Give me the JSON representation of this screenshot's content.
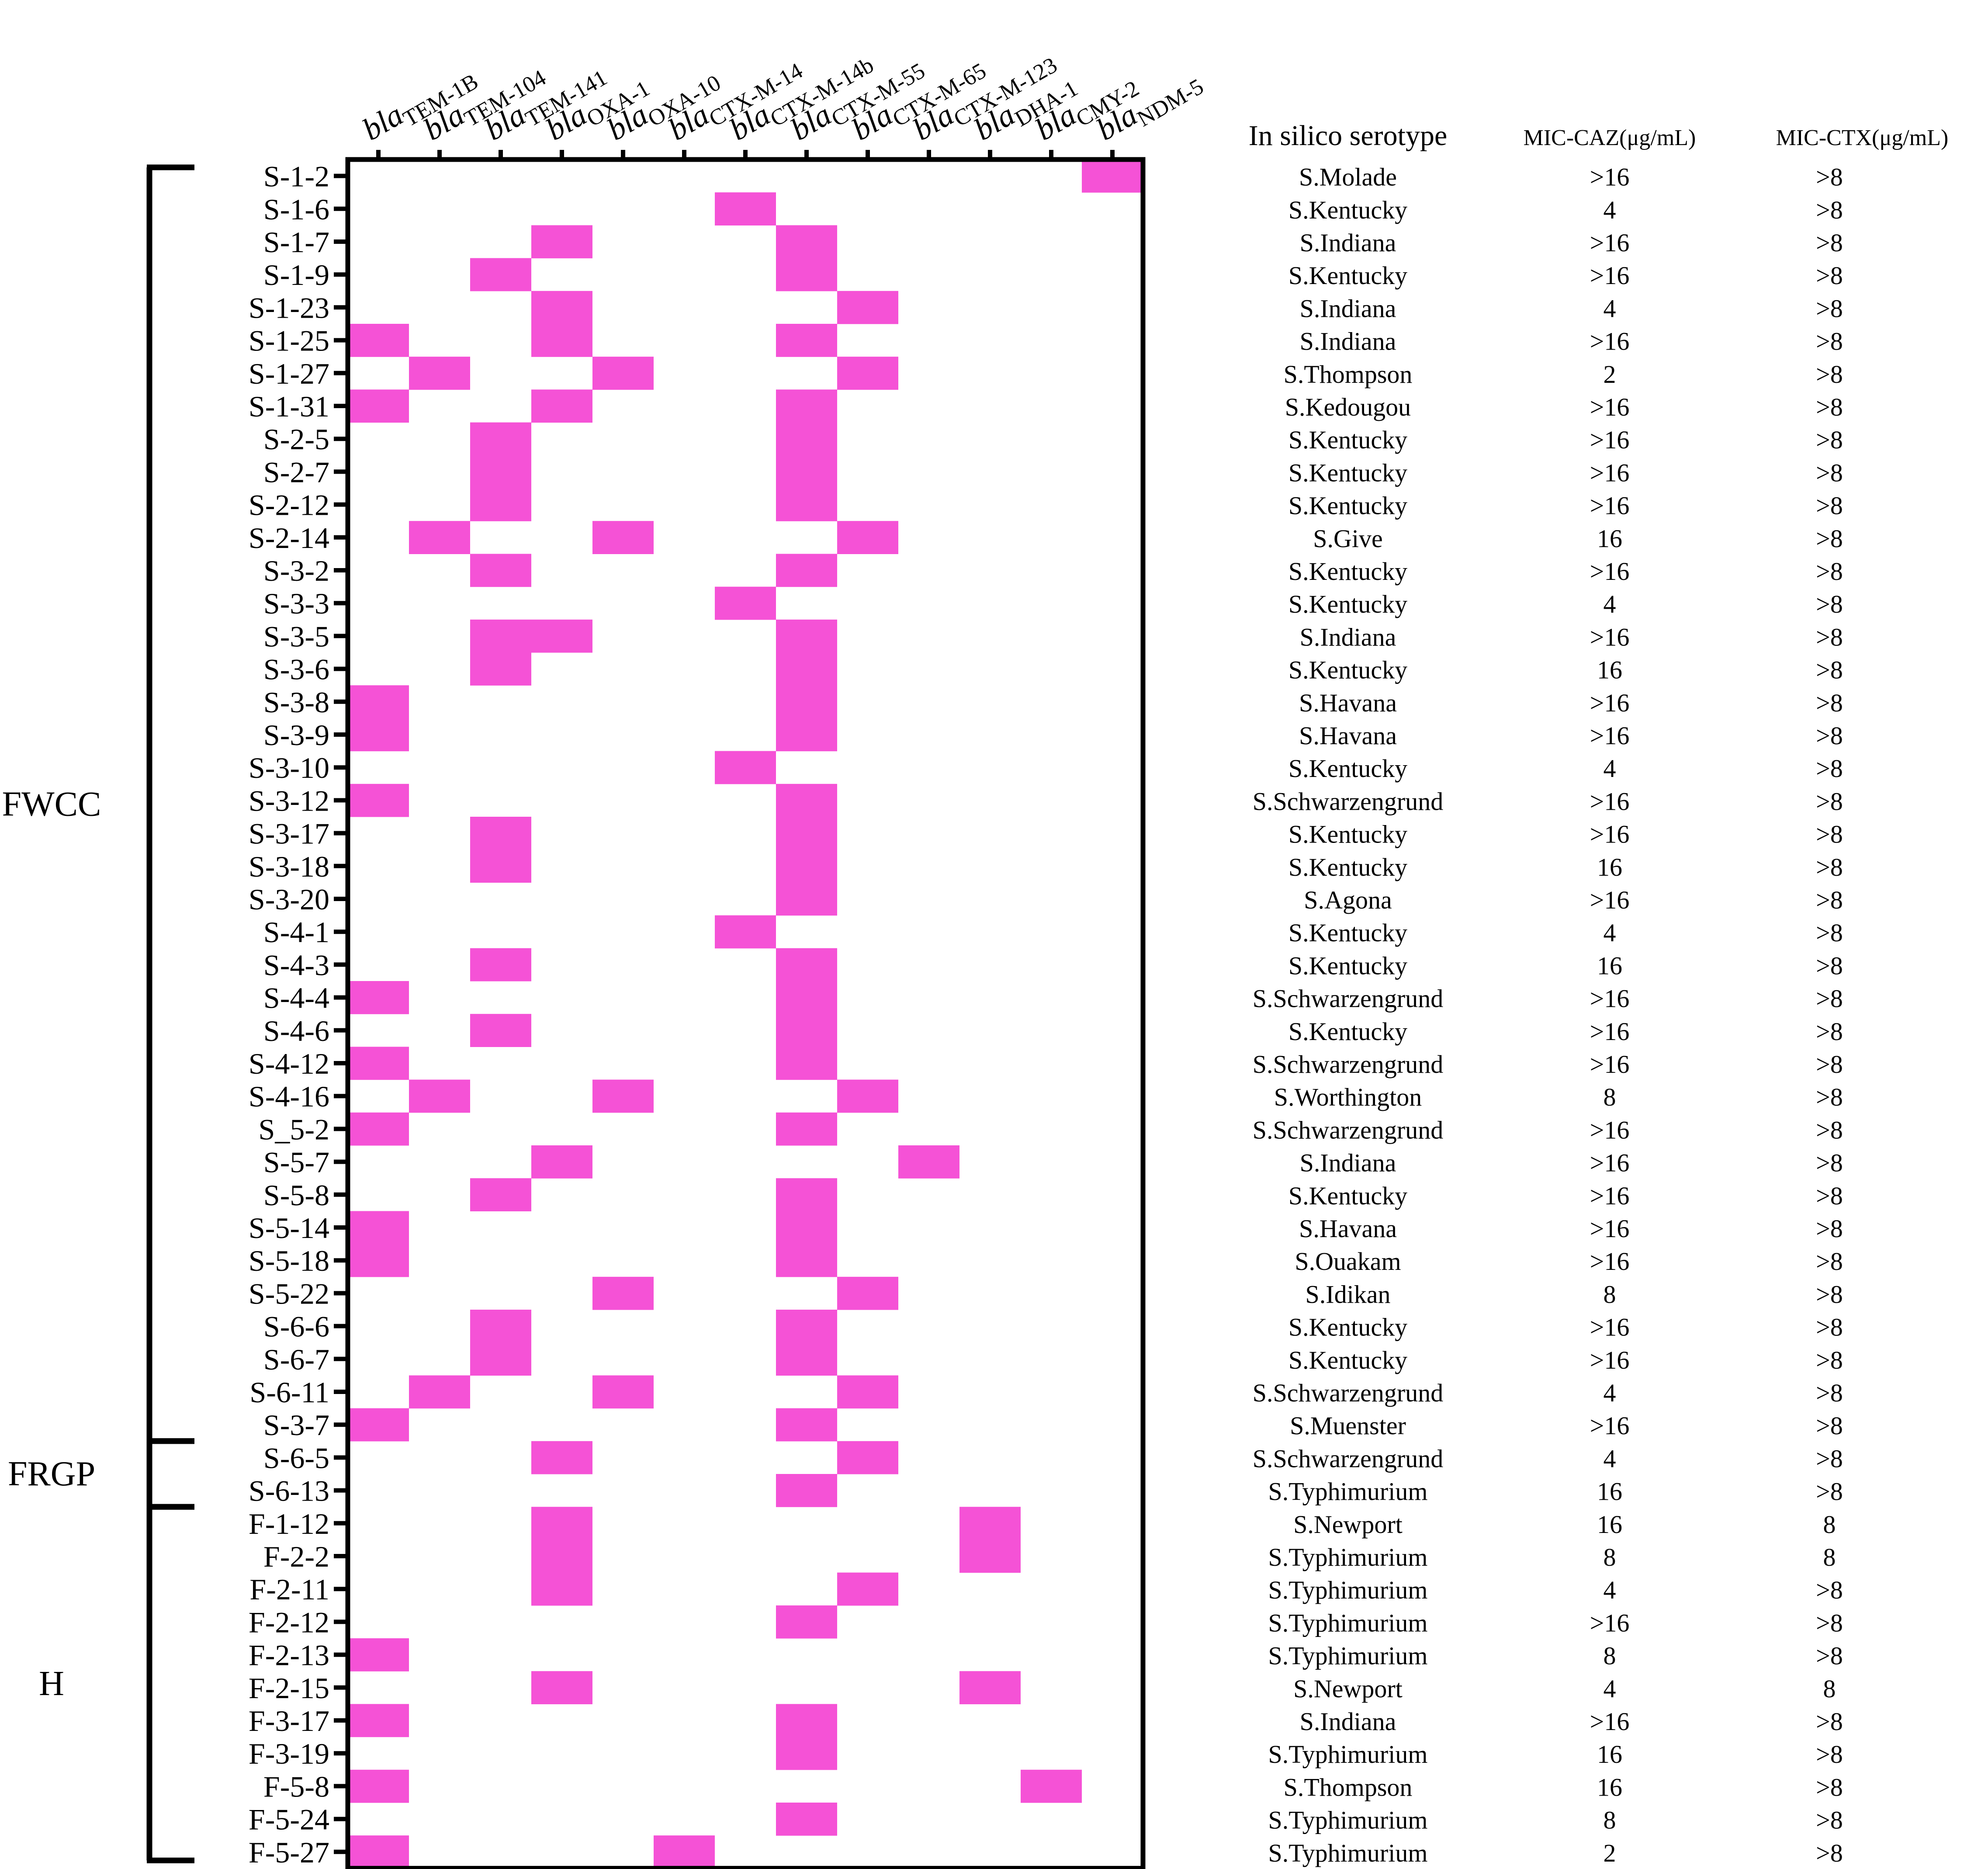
{
  "chart_data": {
    "type": "heatmap",
    "genes": [
      {
        "prefix": "bla",
        "sub": "TEM-1B"
      },
      {
        "prefix": "bla",
        "sub": "TEM-104"
      },
      {
        "prefix": "bla",
        "sub": "TEM-141"
      },
      {
        "prefix": "bla",
        "sub": "OXA-1"
      },
      {
        "prefix": "bla",
        "sub": "OXA-10"
      },
      {
        "prefix": "bla",
        "sub": "CTX-M-14"
      },
      {
        "prefix": "bla",
        "sub": "CTX-M-14b"
      },
      {
        "prefix": "bla",
        "sub": "CTX-M-55"
      },
      {
        "prefix": "bla",
        "sub": "CTX-M-65"
      },
      {
        "prefix": "bla",
        "sub": "CTX-M-123"
      },
      {
        "prefix": "bla",
        "sub": "DHA-1"
      },
      {
        "prefix": "bla",
        "sub": "CMY-2"
      },
      {
        "prefix": "bla",
        "sub": "NDM-5"
      }
    ],
    "table_headers": {
      "serotype": "In silico serotype",
      "mic_caz": "MIC-CAZ(μg/mL)",
      "mic_ctx": "MIC-CTX(μg/mL)"
    },
    "present_color": "#f552d6",
    "groups": [
      {
        "label": "FWCC",
        "first_row": 0,
        "last_row": 39
      },
      {
        "label": "FRGP",
        "first_row": 39,
        "last_row": 41
      },
      {
        "label": "H",
        "first_row": 41,
        "last_row": 52
      }
    ],
    "isolates": [
      {
        "id": "S-1-2",
        "serotype": "S.Molade",
        "caz": ">16",
        "ctx": ">8",
        "genes": [
          12
        ]
      },
      {
        "id": "S-1-6",
        "serotype": "S.Kentucky",
        "caz": "4",
        "ctx": ">8",
        "genes": [
          6
        ]
      },
      {
        "id": "S-1-7",
        "serotype": "S.Indiana",
        "caz": ">16",
        "ctx": ">8",
        "genes": [
          3,
          7
        ]
      },
      {
        "id": "S-1-9",
        "serotype": "S.Kentucky",
        "caz": ">16",
        "ctx": ">8",
        "genes": [
          2,
          7
        ]
      },
      {
        "id": "S-1-23",
        "serotype": "S.Indiana",
        "caz": "4",
        "ctx": ">8",
        "genes": [
          3,
          8
        ]
      },
      {
        "id": "S-1-25",
        "serotype": "S.Indiana",
        "caz": ">16",
        "ctx": ">8",
        "genes": [
          0,
          3,
          7
        ]
      },
      {
        "id": "S-1-27",
        "serotype": "S.Thompson",
        "caz": "2",
        "ctx": ">8",
        "genes": [
          1,
          4,
          8
        ]
      },
      {
        "id": "S-1-31",
        "serotype": "S.Kedougou",
        "caz": ">16",
        "ctx": ">8",
        "genes": [
          0,
          3,
          7
        ]
      },
      {
        "id": "S-2-5",
        "serotype": "S.Kentucky",
        "caz": ">16",
        "ctx": ">8",
        "genes": [
          2,
          7
        ]
      },
      {
        "id": "S-2-7",
        "serotype": "S.Kentucky",
        "caz": ">16",
        "ctx": ">8",
        "genes": [
          2,
          7
        ]
      },
      {
        "id": "S-2-12",
        "serotype": "S.Kentucky",
        "caz": ">16",
        "ctx": ">8",
        "genes": [
          2,
          7
        ]
      },
      {
        "id": "S-2-14",
        "serotype": "S.Give",
        "caz": "16",
        "ctx": ">8",
        "genes": [
          1,
          4,
          8
        ]
      },
      {
        "id": "S-3-2",
        "serotype": "S.Kentucky",
        "caz": ">16",
        "ctx": ">8",
        "genes": [
          2,
          7
        ]
      },
      {
        "id": "S-3-3",
        "serotype": "S.Kentucky",
        "caz": "4",
        "ctx": ">8",
        "genes": [
          6
        ]
      },
      {
        "id": "S-3-5",
        "serotype": "S.Indiana",
        "caz": ">16",
        "ctx": ">8",
        "genes": [
          2,
          3,
          7
        ]
      },
      {
        "id": "S-3-6",
        "serotype": "S.Kentucky",
        "caz": "16",
        "ctx": ">8",
        "genes": [
          2,
          7
        ]
      },
      {
        "id": "S-3-8",
        "serotype": "S.Havana",
        "caz": ">16",
        "ctx": ">8",
        "genes": [
          0,
          7
        ]
      },
      {
        "id": "S-3-9",
        "serotype": "S.Havana",
        "caz": ">16",
        "ctx": ">8",
        "genes": [
          0,
          7
        ]
      },
      {
        "id": "S-3-10",
        "serotype": "S.Kentucky",
        "caz": "4",
        "ctx": ">8",
        "genes": [
          6
        ]
      },
      {
        "id": "S-3-12",
        "serotype": "S.Schwarzengrund",
        "caz": ">16",
        "ctx": ">8",
        "genes": [
          0,
          7
        ]
      },
      {
        "id": "S-3-17",
        "serotype": "S.Kentucky",
        "caz": ">16",
        "ctx": ">8",
        "genes": [
          2,
          7
        ]
      },
      {
        "id": "S-3-18",
        "serotype": "S.Kentucky",
        "caz": "16",
        "ctx": ">8",
        "genes": [
          2,
          7
        ]
      },
      {
        "id": "S-3-20",
        "serotype": "S.Agona",
        "caz": ">16",
        "ctx": ">8",
        "genes": [
          7
        ]
      },
      {
        "id": "S-4-1",
        "serotype": "S.Kentucky",
        "caz": "4",
        "ctx": ">8",
        "genes": [
          6
        ]
      },
      {
        "id": "S-4-3",
        "serotype": "S.Kentucky",
        "caz": "16",
        "ctx": ">8",
        "genes": [
          2,
          7
        ]
      },
      {
        "id": "S-4-4",
        "serotype": "S.Schwarzengrund",
        "caz": ">16",
        "ctx": ">8",
        "genes": [
          0,
          7
        ]
      },
      {
        "id": "S-4-6",
        "serotype": "S.Kentucky",
        "caz": ">16",
        "ctx": ">8",
        "genes": [
          2,
          7
        ]
      },
      {
        "id": "S-4-12",
        "serotype": "S.Schwarzengrund",
        "caz": ">16",
        "ctx": ">8",
        "genes": [
          0,
          7
        ]
      },
      {
        "id": "S-4-16",
        "serotype": "S.Worthington",
        "caz": "8",
        "ctx": ">8",
        "genes": [
          1,
          4,
          8
        ]
      },
      {
        "id": "S_5-2",
        "serotype": "S.Schwarzengrund",
        "caz": ">16",
        "ctx": ">8",
        "genes": [
          0,
          7
        ]
      },
      {
        "id": "S-5-7",
        "serotype": "S.Indiana",
        "caz": ">16",
        "ctx": ">8",
        "genes": [
          3,
          9
        ]
      },
      {
        "id": "S-5-8",
        "serotype": "S.Kentucky",
        "caz": ">16",
        "ctx": ">8",
        "genes": [
          2,
          7
        ]
      },
      {
        "id": "S-5-14",
        "serotype": "S.Havana",
        "caz": ">16",
        "ctx": ">8",
        "genes": [
          0,
          7
        ]
      },
      {
        "id": "S-5-18",
        "serotype": "S.Ouakam",
        "caz": ">16",
        "ctx": ">8",
        "genes": [
          0,
          7
        ]
      },
      {
        "id": "S-5-22",
        "serotype": "S.Idikan",
        "caz": "8",
        "ctx": ">8",
        "genes": [
          4,
          8
        ]
      },
      {
        "id": "S-6-6",
        "serotype": "S.Kentucky",
        "caz": ">16",
        "ctx": ">8",
        "genes": [
          2,
          7
        ]
      },
      {
        "id": "S-6-7",
        "serotype": "S.Kentucky",
        "caz": ">16",
        "ctx": ">8",
        "genes": [
          2,
          7
        ]
      },
      {
        "id": "S-6-11",
        "serotype": "S.Schwarzengrund",
        "caz": "4",
        "ctx": ">8",
        "genes": [
          1,
          4,
          8
        ]
      },
      {
        "id": "S-3-7",
        "serotype": "S.Muenster",
        "caz": ">16",
        "ctx": ">8",
        "genes": [
          0,
          7
        ]
      },
      {
        "id": "S-6-5",
        "serotype": "S.Schwarzengrund",
        "caz": "4",
        "ctx": ">8",
        "genes": [
          3,
          8
        ]
      },
      {
        "id": "S-6-13",
        "serotype": "S.Typhimurium",
        "caz": "16",
        "ctx": ">8",
        "genes": [
          7
        ]
      },
      {
        "id": "F-1-12",
        "serotype": "S.Newport",
        "caz": "16",
        "ctx": "8",
        "genes": [
          3,
          10
        ]
      },
      {
        "id": "F-2-2",
        "serotype": "S.Typhimurium",
        "caz": "8",
        "ctx": "8",
        "genes": [
          3,
          10
        ]
      },
      {
        "id": "F-2-11",
        "serotype": "S.Typhimurium",
        "caz": "4",
        "ctx": ">8",
        "genes": [
          3,
          8
        ]
      },
      {
        "id": "F-2-12",
        "serotype": "S.Typhimurium",
        "caz": ">16",
        "ctx": ">8",
        "genes": [
          7
        ]
      },
      {
        "id": "F-2-13",
        "serotype": "S.Typhimurium",
        "caz": "8",
        "ctx": ">8",
        "genes": [
          0
        ]
      },
      {
        "id": "F-2-15",
        "serotype": "S.Newport",
        "caz": "4",
        "ctx": "8",
        "genes": [
          3,
          10
        ]
      },
      {
        "id": "F-3-17",
        "serotype": "S.Indiana",
        "caz": ">16",
        "ctx": ">8",
        "genes": [
          0,
          7
        ]
      },
      {
        "id": "F-3-19",
        "serotype": "S.Typhimurium",
        "caz": "16",
        "ctx": ">8",
        "genes": [
          7
        ]
      },
      {
        "id": "F-5-8",
        "serotype": "S.Thompson",
        "caz": "16",
        "ctx": ">8",
        "genes": [
          0,
          11
        ]
      },
      {
        "id": "F-5-24",
        "serotype": "S.Typhimurium",
        "caz": "8",
        "ctx": ">8",
        "genes": [
          7
        ]
      },
      {
        "id": "F-5-27",
        "serotype": "S.Typhimurium",
        "caz": "2",
        "ctx": ">8",
        "genes": [
          0,
          5
        ]
      }
    ]
  }
}
